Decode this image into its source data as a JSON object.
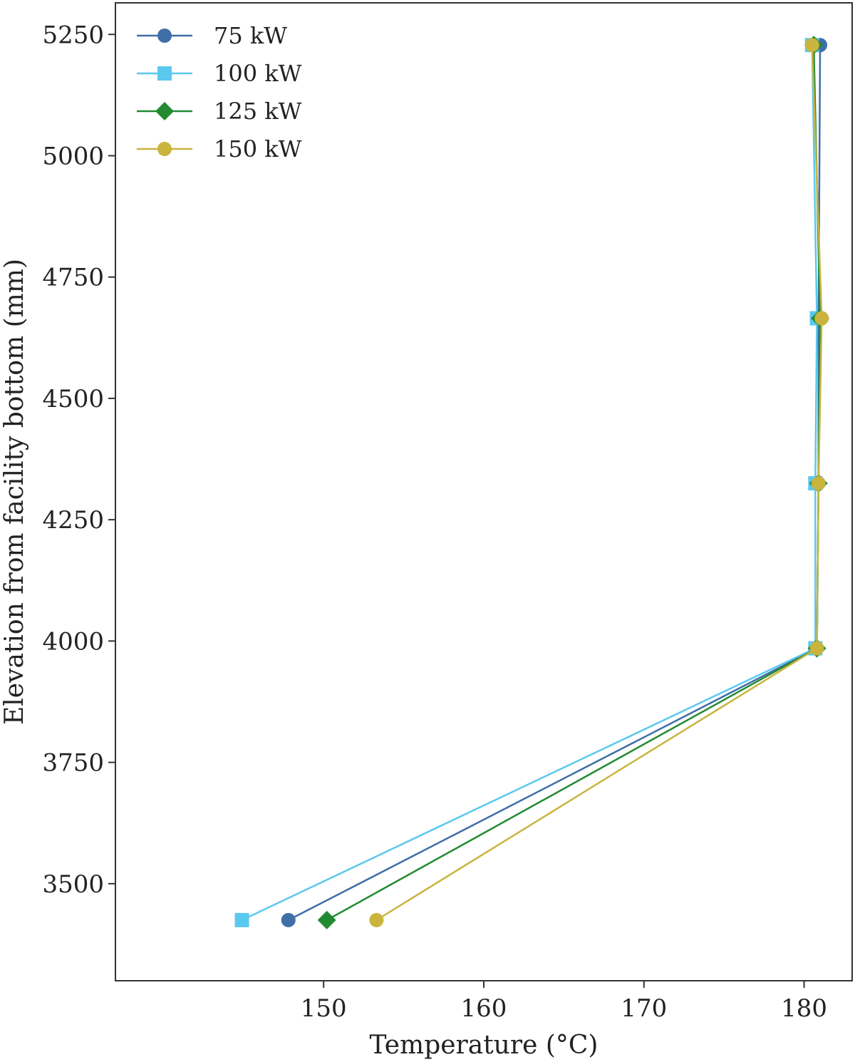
{
  "chart_data": {
    "type": "line",
    "xlabel": "Temperature (°C)",
    "ylabel": "Elevation from facility bottom (mm)",
    "xlim": [
      137,
      183
    ],
    "ylim": [
      3300,
      5315
    ],
    "xticks": [
      150,
      160,
      170,
      180
    ],
    "yticks": [
      3500,
      3750,
      4000,
      4250,
      4500,
      4750,
      5000,
      5250
    ],
    "grid": false,
    "legend_position": "top-left",
    "series": [
      {
        "name": "75 kW",
        "color": "#3f6ea8",
        "marker": "circle",
        "x": [
          147.8,
          180.8,
          180.9,
          180.9,
          181.0
        ],
        "y": [
          3425,
          3985,
          4325,
          4665,
          5228
        ]
      },
      {
        "name": "100 kW",
        "color": "#5bc8ee",
        "marker": "square",
        "x": [
          144.9,
          180.7,
          180.7,
          180.8,
          180.5
        ],
        "y": [
          3425,
          3985,
          4325,
          4665,
          5228
        ]
      },
      {
        "name": "125 kW",
        "color": "#228b32",
        "marker": "diamond",
        "x": [
          150.2,
          180.8,
          180.9,
          181.0,
          180.6
        ],
        "y": [
          3425,
          3985,
          4325,
          4665,
          5228
        ]
      },
      {
        "name": "150 kW",
        "color": "#c9b43e",
        "marker": "circle",
        "x": [
          153.3,
          180.8,
          180.9,
          181.1,
          180.5
        ],
        "y": [
          3425,
          3985,
          4325,
          4665,
          5228
        ]
      }
    ]
  }
}
